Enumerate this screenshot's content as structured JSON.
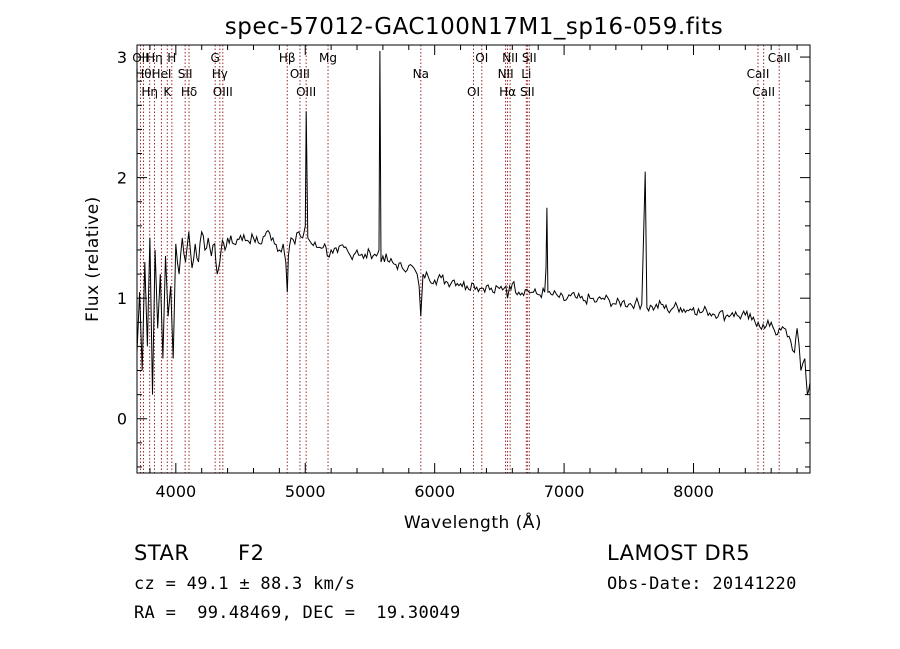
{
  "chart_data": {
    "type": "line",
    "title": "spec-57012-GAC100N17M1_sp16-059.fits",
    "xlabel": "Wavelength (Å)",
    "ylabel": "Flux (relative)",
    "xlim": [
      3700,
      8900
    ],
    "ylim": [
      -0.45,
      3.1
    ],
    "x_ticks": [
      4000,
      5000,
      6000,
      7000,
      8000
    ],
    "y_ticks": [
      0,
      1,
      2,
      3
    ],
    "grid": false,
    "series": [
      {
        "color": "#000000",
        "x": [
          3700,
          3720,
          3740,
          3760,
          3780,
          3800,
          3820,
          3840,
          3860,
          3880,
          3900,
          3920,
          3940,
          3960,
          3980,
          4000,
          4025,
          4050,
          4075,
          4100,
          4125,
          4150,
          4175,
          4200,
          4225,
          4250,
          4275,
          4300,
          4320,
          4340,
          4360,
          4380,
          4400,
          4450,
          4500,
          4550,
          4600,
          4650,
          4700,
          4750,
          4800,
          4830,
          4850,
          4861,
          4870,
          4890,
          4920,
          4950,
          4980,
          5000,
          5007,
          5020,
          5050,
          5100,
          5150,
          5170,
          5200,
          5250,
          5300,
          5350,
          5400,
          5450,
          5500,
          5550,
          5570,
          5577,
          5585,
          5600,
          5650,
          5700,
          5750,
          5800,
          5850,
          5880,
          5893,
          5910,
          5950,
          6000,
          6050,
          6100,
          6150,
          6200,
          6250,
          6300,
          6350,
          6400,
          6450,
          6500,
          6550,
          6563,
          6580,
          6600,
          6650,
          6700,
          6750,
          6800,
          6850,
          6860,
          6867,
          6875,
          6900,
          6950,
          7000,
          7050,
          7100,
          7150,
          7200,
          7250,
          7300,
          7350,
          7400,
          7450,
          7500,
          7550,
          7600,
          7627,
          7640,
          7680,
          7700,
          7750,
          7800,
          7850,
          7900,
          7950,
          8000,
          8050,
          8100,
          8150,
          8200,
          8250,
          8300,
          8350,
          8400,
          8450,
          8500,
          8550,
          8600,
          8650,
          8700,
          8750,
          8780,
          8800,
          8830,
          8860,
          8880,
          8900
        ],
        "y": [
          0.55,
          1.05,
          0.4,
          1.3,
          0.6,
          1.5,
          0.2,
          1.4,
          0.75,
          1.2,
          0.5,
          1.35,
          0.85,
          1.1,
          0.5,
          1.45,
          1.2,
          1.5,
          1.3,
          1.55,
          1.25,
          1.45,
          1.3,
          1.55,
          1.4,
          1.5,
          1.35,
          1.45,
          1.2,
          1.3,
          1.48,
          1.4,
          1.5,
          1.45,
          1.52,
          1.48,
          1.5,
          1.45,
          1.55,
          1.5,
          1.4,
          1.45,
          1.3,
          1.05,
          1.35,
          1.5,
          1.45,
          1.55,
          1.5,
          1.6,
          2.55,
          1.5,
          1.45,
          1.42,
          1.45,
          1.35,
          1.4,
          1.38,
          1.42,
          1.35,
          1.4,
          1.33,
          1.38,
          1.35,
          1.4,
          3.05,
          1.3,
          1.35,
          1.3,
          1.28,
          1.25,
          1.27,
          1.23,
          1.1,
          0.85,
          1.2,
          1.18,
          1.15,
          1.17,
          1.13,
          1.15,
          1.12,
          1.1,
          1.12,
          1.08,
          1.1,
          1.05,
          1.08,
          1.1,
          1.0,
          1.1,
          1.12,
          1.05,
          1.07,
          1.05,
          1.03,
          1.05,
          1.25,
          1.75,
          1.05,
          1.03,
          1.02,
          0.98,
          1.02,
          1.0,
          0.98,
          1.0,
          0.97,
          1.0,
          0.98,
          0.95,
          0.97,
          0.95,
          0.96,
          0.95,
          2.05,
          0.92,
          0.93,
          0.92,
          0.95,
          0.9,
          0.93,
          0.92,
          0.9,
          0.92,
          0.88,
          0.9,
          0.87,
          0.88,
          0.85,
          0.88,
          0.85,
          0.86,
          0.82,
          0.8,
          0.75,
          0.8,
          0.7,
          0.75,
          0.65,
          0.55,
          0.75,
          0.4,
          0.5,
          0.2,
          0.3
        ]
      }
    ],
    "line_markers": [
      {
        "wave": 3727,
        "label": "OII"
      },
      {
        "wave": 3750,
        "label": "Hθ"
      },
      {
        "wave": 3798,
        "label": "Hη"
      },
      {
        "wave": 3835,
        "label": "Hη"
      },
      {
        "wave": 3889,
        "label": "HeI"
      },
      {
        "wave": 3934,
        "label": "K"
      },
      {
        "wave": 3969,
        "label": "H"
      },
      {
        "wave": 4072,
        "label": "SII"
      },
      {
        "wave": 4102,
        "label": "Hδ"
      },
      {
        "wave": 4304,
        "label": "G"
      },
      {
        "wave": 4340,
        "label": "Hγ"
      },
      {
        "wave": 4363,
        "label": "OIII"
      },
      {
        "wave": 4861,
        "label": "Hβ"
      },
      {
        "wave": 4959,
        "label": "OIII"
      },
      {
        "wave": 5007,
        "label": "OIII"
      },
      {
        "wave": 5176,
        "label": "Mg"
      },
      {
        "wave": 5893,
        "label": "Na"
      },
      {
        "wave": 6300,
        "label": "OI"
      },
      {
        "wave": 6364,
        "label": "OI"
      },
      {
        "wave": 6548,
        "label": "NII"
      },
      {
        "wave": 6563,
        "label": "Hα"
      },
      {
        "wave": 6583,
        "label": "NII"
      },
      {
        "wave": 6708,
        "label": "Li"
      },
      {
        "wave": 6716,
        "label": "SII"
      },
      {
        "wave": 6731,
        "label": "SII"
      },
      {
        "wave": 8498,
        "label": "CaII"
      },
      {
        "wave": 8542,
        "label": "CaII"
      },
      {
        "wave": 8662,
        "label": "CaII"
      }
    ]
  },
  "info": {
    "class_label": "STAR",
    "subclass": "F2",
    "survey": "LAMOST DR5",
    "redshift_text": "cz = 49.1 ± 88.3 km/s",
    "obs_date_text": "Obs-Date: 20141220",
    "coords_text": "RA =  99.48469, DEC =  19.30049"
  }
}
